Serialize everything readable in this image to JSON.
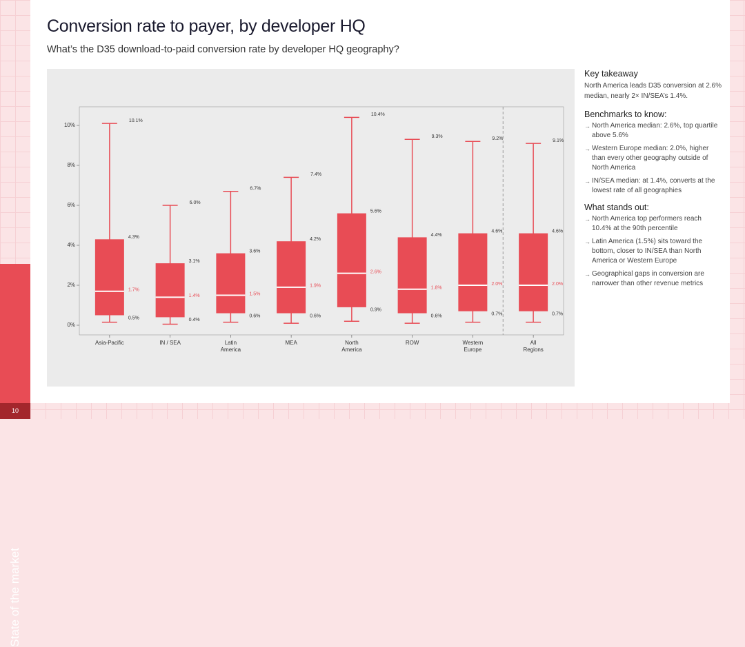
{
  "page": {
    "title": "Conversion rate to payer, by developer HQ",
    "subtitle": "What’s the D35 download-to-paid conversion rate by developer HQ geography?",
    "section_label": "State of the market",
    "page_number": "10"
  },
  "sidebar": {
    "key_takeaway_heading": "Key takeaway",
    "key_takeaway_text": "North America leads D35 conversion at 2.6% median, nearly 2× IN/SEA’s 1.4%.",
    "benchmarks_heading": "Benchmarks to know:",
    "benchmarks": [
      "North America median: 2.6%, top quartile above 5.6%",
      "Western Europe median: 2.0%, higher than every other geography outside of North America",
      "IN/SEA median: at 1.4%, converts at the lowest rate of all geographies"
    ],
    "stands_out_heading": "What stands out:",
    "stands_out": [
      "North America top performers reach 10.4% at the 90th percentile",
      "Latin America (1.5%) sits toward the bottom, closer to IN/SEA than North America or Western Europe",
      "Geographical gaps in conversion are narrower than other revenue metrics"
    ]
  },
  "chart_data": {
    "type": "box",
    "title": "",
    "xlabel": "",
    "ylabel": "",
    "ylim": [
      0,
      11
    ],
    "yticks": [
      0,
      2,
      4,
      6,
      8,
      10
    ],
    "ytick_labels": [
      "0%",
      "2%",
      "4%",
      "6%",
      "8%",
      "10%"
    ],
    "grid": false,
    "box_color": "#e84c55",
    "median_color": "#ffffff",
    "separator_before_category": "All Regions",
    "categories": [
      {
        "label": "Asia-Pacific",
        "whisker_low": 0.15,
        "q1": 0.5,
        "median": 1.7,
        "q3": 4.3,
        "whisker_high": 10.1,
        "labels": {
          "high": "10.1%",
          "q3": "4.3%",
          "median": "1.7%",
          "q1": "0.5%"
        }
      },
      {
        "label": "IN / SEA",
        "whisker_low": 0.05,
        "q1": 0.4,
        "median": 1.4,
        "q3": 3.1,
        "whisker_high": 6.0,
        "labels": {
          "high": "6.0%",
          "q3": "3.1%",
          "median": "1.4%",
          "q1": "0.4%"
        }
      },
      {
        "label": "Latin America",
        "whisker_low": 0.15,
        "q1": 0.6,
        "median": 1.5,
        "q3": 3.6,
        "whisker_high": 6.7,
        "labels": {
          "high": "6.7%",
          "q3": "3.6%",
          "median": "1.5%",
          "q1": "0.6%"
        }
      },
      {
        "label": "MEA",
        "whisker_low": 0.1,
        "q1": 0.6,
        "median": 1.9,
        "q3": 4.2,
        "whisker_high": 7.4,
        "labels": {
          "high": "7.4%",
          "q3": "4.2%",
          "median": "1.9%",
          "q1": "0.6%"
        }
      },
      {
        "label": "North America",
        "whisker_low": 0.2,
        "q1": 0.9,
        "median": 2.6,
        "q3": 5.6,
        "whisker_high": 10.4,
        "labels": {
          "high": "10.4%",
          "q3": "5.6%",
          "median": "2.6%",
          "q1": "0.9%"
        }
      },
      {
        "label": "ROW",
        "whisker_low": 0.1,
        "q1": 0.6,
        "median": 1.8,
        "q3": 4.4,
        "whisker_high": 9.3,
        "labels": {
          "high": "9.3%",
          "q3": "4.4%",
          "median": "1.8%",
          "q1": "0.6%"
        }
      },
      {
        "label": "Western Europe",
        "whisker_low": 0.15,
        "q1": 0.7,
        "median": 2.0,
        "q3": 4.6,
        "whisker_high": 9.2,
        "labels": {
          "high": "9.2%",
          "q3": "4.6%",
          "median": "2.0%",
          "q1": "0.7%"
        }
      },
      {
        "label": "All Regions",
        "whisker_low": 0.15,
        "q1": 0.7,
        "median": 2.0,
        "q3": 4.6,
        "whisker_high": 9.1,
        "labels": {
          "high": "9.1%",
          "q3": "4.6%",
          "median": "2.0%",
          "q1": "0.7%"
        }
      }
    ]
  }
}
